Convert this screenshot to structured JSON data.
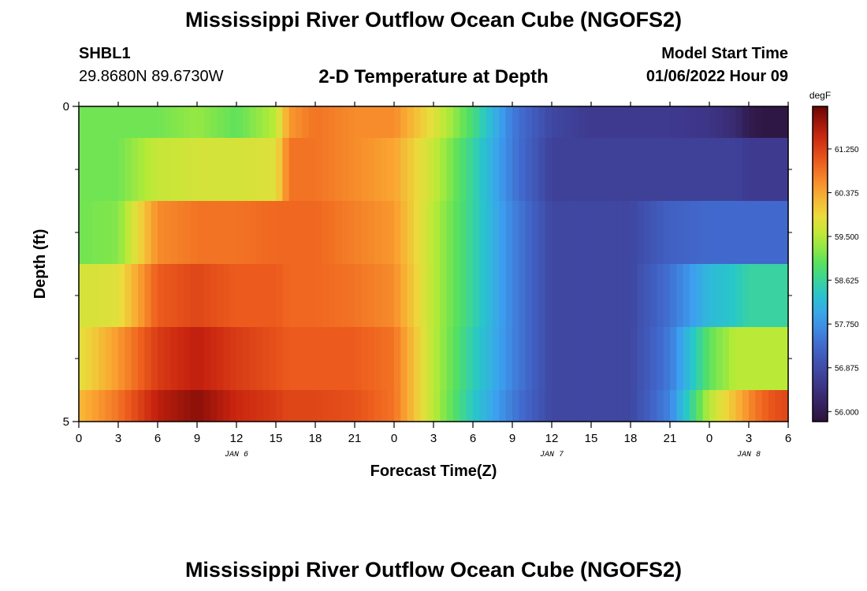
{
  "header": {
    "title": "Mississippi River Outflow Ocean Cube (NGOFS2)",
    "station_id": "SHBL1",
    "station_coords": "29.8680N  89.6730W",
    "subtitle": "2-D Temperature at Depth",
    "model_start_label": "Model Start Time",
    "model_start_datetime": "01/06/2022 Hour 09"
  },
  "footer": {
    "title": "Mississippi River Outflow Ocean Cube (NGOFS2)"
  },
  "chart_data": {
    "type": "heatmap",
    "xlabel": "Forecast Time(Z)",
    "ylabel": "Depth (ft)",
    "x_tick_labels": [
      "0",
      "3",
      "6",
      "9",
      "12",
      "15",
      "18",
      "21",
      "0",
      "3",
      "6",
      "9",
      "12",
      "15",
      "18",
      "21",
      "0",
      "3",
      "6"
    ],
    "x_day_labels": [
      {
        "label": "JAN 6",
        "at_tick": 4
      },
      {
        "label": "JAN 7",
        "at_tick": 12
      },
      {
        "label": "JAN 8",
        "at_tick": 17
      }
    ],
    "x_hours_range": [
      0,
      54
    ],
    "y_tick_labels": [
      {
        "label": "0",
        "value": 0
      },
      {
        "label": "5",
        "value": 5
      }
    ],
    "ylim": [
      0,
      5
    ],
    "y_minor_ticks": [
      1,
      2,
      3,
      4
    ],
    "depth_layers": [
      0,
      0.5,
      1.5,
      2.5,
      3.5,
      4.5,
      5
    ],
    "colorbar": {
      "unit": "degF",
      "range": [
        55.8,
        62.1
      ],
      "ticks": [
        "61.250",
        "60.375",
        "59.500",
        "58.625",
        "57.750",
        "56.875",
        "56.000"
      ],
      "tick_values": [
        61.25,
        60.375,
        59.5,
        58.625,
        57.75,
        56.875,
        56.0
      ]
    },
    "time_hours": [
      0,
      3,
      6,
      9,
      12,
      15,
      16,
      18,
      21,
      24,
      27,
      30,
      33,
      36,
      39,
      42,
      45,
      48,
      50,
      51,
      52,
      53,
      54
    ],
    "values_degF": [
      [
        59.1,
        59.1,
        59.1,
        59.3,
        59.0,
        59.5,
        60.5,
        60.8,
        60.6,
        60.6,
        59.8,
        58.8,
        57.5,
        56.8,
        56.6,
        56.6,
        56.6,
        56.5,
        56.3,
        56.0,
        55.9,
        55.9,
        55.9
      ],
      [
        59.1,
        59.1,
        59.6,
        59.7,
        59.7,
        59.8,
        60.8,
        60.8,
        60.6,
        60.4,
        59.6,
        58.6,
        57.5,
        56.7,
        56.7,
        56.7,
        56.7,
        56.7,
        56.7,
        56.6,
        56.6,
        56.6,
        56.6
      ],
      [
        59.1,
        59.2,
        60.6,
        60.8,
        60.8,
        60.9,
        60.9,
        60.9,
        60.7,
        60.5,
        59.5,
        58.6,
        57.6,
        56.8,
        56.8,
        56.8,
        57.2,
        57.3,
        57.3,
        57.3,
        57.3,
        57.3,
        57.3
      ],
      [
        59.7,
        59.8,
        61.0,
        61.2,
        61.0,
        61.0,
        60.9,
        60.9,
        60.8,
        60.6,
        59.5,
        58.6,
        57.6,
        56.8,
        56.8,
        56.8,
        57.4,
        58.2,
        58.4,
        58.6,
        58.6,
        58.6,
        58.6
      ],
      [
        59.8,
        60.5,
        61.3,
        61.6,
        61.3,
        61.1,
        61.0,
        61.0,
        61.0,
        60.8,
        59.5,
        58.5,
        57.6,
        56.8,
        56.8,
        56.8,
        57.5,
        59.0,
        59.5,
        59.5,
        59.5,
        59.5,
        59.5
      ],
      [
        60.2,
        60.8,
        61.6,
        61.9,
        61.5,
        61.3,
        61.2,
        61.2,
        61.1,
        60.8,
        59.5,
        58.4,
        57.5,
        56.8,
        56.8,
        56.8,
        57.6,
        59.5,
        60.2,
        60.6,
        60.9,
        61.1,
        61.2
      ]
    ]
  }
}
